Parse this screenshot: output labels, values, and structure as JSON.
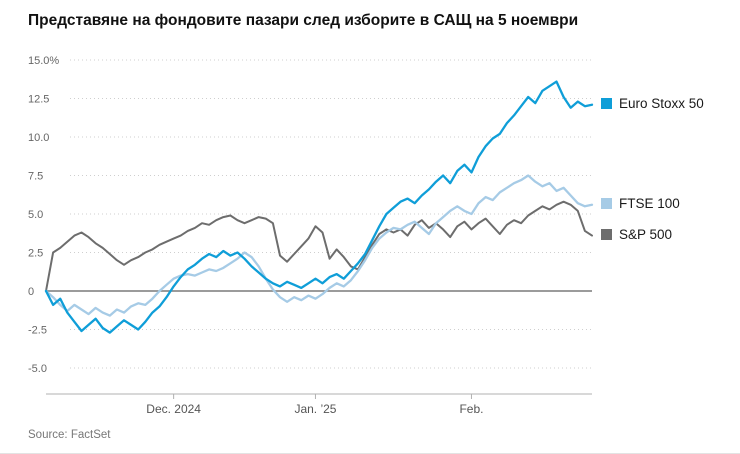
{
  "page": {
    "title": "Представяне на фондовите пазари след изборите в САЩ на 5 ноември",
    "source": "Source: FactSet"
  },
  "chart_data": {
    "type": "line",
    "title": "Представяне на фондовите пазари след изборите в САЩ на 5 ноември",
    "xlabel": "",
    "ylabel": "",
    "ylim": [
      -5,
      15
    ],
    "grid": true,
    "legend_position": "right",
    "source": "Source: FactSet",
    "yticks": [
      {
        "value": 15,
        "label": "15.0%"
      },
      {
        "value": 12.5,
        "label": "12.5"
      },
      {
        "value": 10,
        "label": "10.0"
      },
      {
        "value": 7.5,
        "label": "7.5"
      },
      {
        "value": 5,
        "label": "5.0"
      },
      {
        "value": 2.5,
        "label": "2.5"
      },
      {
        "value": 0,
        "label": "0"
      },
      {
        "value": -2.5,
        "label": "-2.5"
      },
      {
        "value": -5,
        "label": "-5.0"
      }
    ],
    "xticks": [
      {
        "index": 18,
        "label": "Dec. 2024"
      },
      {
        "index": 38,
        "label": "Jan. ’25"
      },
      {
        "index": 60,
        "label": "Feb."
      }
    ],
    "series": [
      {
        "name": "Euro Stoxx 50",
        "color": "#0f9ed8",
        "values": [
          0.0,
          -0.9,
          -0.5,
          -1.4,
          -2.0,
          -2.6,
          -2.2,
          -1.8,
          -2.4,
          -2.7,
          -2.3,
          -1.9,
          -2.2,
          -2.5,
          -2.0,
          -1.4,
          -1.0,
          -0.4,
          0.3,
          0.9,
          1.4,
          1.7,
          2.1,
          2.4,
          2.2,
          2.6,
          2.3,
          2.5,
          2.1,
          1.6,
          1.2,
          0.8,
          0.5,
          0.3,
          0.6,
          0.4,
          0.2,
          0.5,
          0.8,
          0.5,
          0.9,
          1.1,
          0.8,
          1.3,
          1.8,
          2.4,
          3.3,
          4.2,
          5.0,
          5.4,
          5.8,
          6.0,
          5.7,
          6.2,
          6.6,
          7.1,
          7.5,
          7.0,
          7.8,
          8.2,
          7.7,
          8.7,
          9.4,
          9.9,
          10.2,
          10.9,
          11.4,
          12.0,
          12.6,
          12.2,
          13.0,
          13.3,
          13.6,
          12.6,
          11.9,
          12.3,
          12.0,
          12.1
        ]
      },
      {
        "name": "FTSE 100",
        "color": "#a6cbe6",
        "values": [
          0.0,
          -0.4,
          -0.9,
          -1.3,
          -0.9,
          -1.2,
          -1.5,
          -1.1,
          -1.4,
          -1.6,
          -1.2,
          -1.4,
          -1.0,
          -0.8,
          -0.9,
          -0.5,
          0.0,
          0.4,
          0.8,
          1.0,
          1.1,
          1.0,
          1.2,
          1.4,
          1.3,
          1.5,
          1.8,
          2.1,
          2.5,
          2.2,
          1.6,
          0.8,
          0.1,
          -0.4,
          -0.7,
          -0.4,
          -0.6,
          -0.3,
          -0.5,
          -0.2,
          0.2,
          0.5,
          0.3,
          0.7,
          1.3,
          2.0,
          2.8,
          3.4,
          3.8,
          4.1,
          4.0,
          4.3,
          4.5,
          4.1,
          3.7,
          4.4,
          4.8,
          5.2,
          5.5,
          5.2,
          5.0,
          5.7,
          6.1,
          5.9,
          6.4,
          6.7,
          7.0,
          7.2,
          7.5,
          7.1,
          6.8,
          7.0,
          6.5,
          6.7,
          6.2,
          5.7,
          5.5,
          5.6
        ]
      },
      {
        "name": "S&P 500",
        "color": "#6d6d6d",
        "values": [
          0.0,
          2.5,
          2.8,
          3.2,
          3.6,
          3.8,
          3.5,
          3.1,
          2.8,
          2.4,
          2.0,
          1.7,
          2.0,
          2.2,
          2.5,
          2.7,
          3.0,
          3.2,
          3.4,
          3.6,
          3.9,
          4.1,
          4.4,
          4.3,
          4.6,
          4.8,
          4.9,
          4.6,
          4.4,
          4.6,
          4.8,
          4.7,
          4.4,
          2.3,
          1.9,
          2.4,
          2.9,
          3.4,
          4.2,
          3.8,
          2.1,
          2.7,
          2.2,
          1.6,
          1.4,
          2.2,
          3.0,
          3.7,
          4.0,
          3.8,
          4.0,
          3.6,
          4.3,
          4.6,
          4.1,
          4.4,
          4.0,
          3.5,
          4.2,
          4.5,
          4.0,
          4.4,
          4.7,
          4.2,
          3.7,
          4.3,
          4.6,
          4.4,
          4.9,
          5.2,
          5.5,
          5.3,
          5.6,
          5.8,
          5.6,
          5.2,
          3.9,
          3.6
        ]
      }
    ]
  }
}
